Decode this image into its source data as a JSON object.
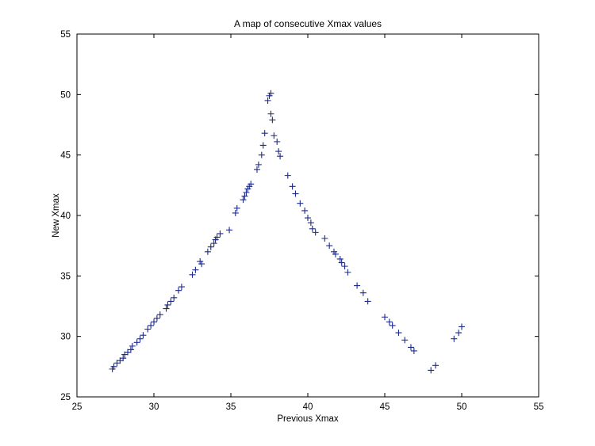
{
  "chart_data": {
    "type": "scatter",
    "title": "A map of consecutive Xmax values",
    "xlabel": "Previous Xmax",
    "ylabel": "New Xmax",
    "xlim": [
      25,
      55
    ],
    "ylim": [
      25,
      55
    ],
    "xticks": [
      25,
      30,
      35,
      40,
      45,
      50,
      55
    ],
    "yticks": [
      25,
      30,
      35,
      40,
      45,
      50,
      55
    ],
    "grid": false,
    "legend": "none",
    "marker": "+",
    "colors": {
      "marker": "#1c2a8c",
      "axes": "#000000",
      "background": "#ffffff"
    },
    "series": [
      {
        "x": [
          27.3,
          27.4,
          27.6,
          27.8,
          28.0,
          28.1,
          28.3,
          28.5,
          28.6,
          28.9,
          29.1,
          29.3,
          29.6,
          29.8,
          30.0,
          30.2,
          30.4,
          30.8,
          30.9,
          31.1,
          31.3,
          31.6,
          31.8,
          32.5,
          32.7,
          33.1,
          33.0,
          33.5,
          33.7,
          33.9,
          34.0,
          34.1,
          34.3,
          34.9,
          35.3,
          35.4,
          35.8,
          35.9,
          36.0,
          36.1,
          36.2,
          36.3,
          36.7,
          36.8,
          37.0,
          37.1,
          37.2,
          37.4,
          37.5,
          37.6,
          37.6,
          37.7,
          37.8,
          38.0,
          38.1,
          38.2,
          38.7,
          39.0,
          39.2,
          39.5,
          39.8,
          40.0,
          40.2,
          40.3,
          40.5,
          41.1,
          41.4,
          41.7,
          41.8,
          42.1,
          42.2,
          42.4,
          42.6,
          43.2,
          43.6,
          43.9,
          45.0,
          45.3,
          45.5,
          45.9,
          46.3,
          46.7,
          46.9,
          48.0,
          48.3,
          49.5,
          49.8,
          50.0
        ],
        "y": [
          27.3,
          27.5,
          27.8,
          28.0,
          28.2,
          28.5,
          28.7,
          28.9,
          29.2,
          29.5,
          29.8,
          30.1,
          30.6,
          30.9,
          31.2,
          31.5,
          31.8,
          32.3,
          32.6,
          32.9,
          33.2,
          33.8,
          34.1,
          35.1,
          35.5,
          36.0,
          36.2,
          37.0,
          37.4,
          37.7,
          38.0,
          38.2,
          38.5,
          38.8,
          40.2,
          40.6,
          41.3,
          41.6,
          41.9,
          42.2,
          42.4,
          42.6,
          43.8,
          44.2,
          45.0,
          45.8,
          46.8,
          49.5,
          49.9,
          50.1,
          48.4,
          47.9,
          46.6,
          46.1,
          45.3,
          44.9,
          43.3,
          42.4,
          41.8,
          41.0,
          40.4,
          39.8,
          39.4,
          38.9,
          38.6,
          38.1,
          37.5,
          37.0,
          36.8,
          36.4,
          36.1,
          35.8,
          35.3,
          34.2,
          33.6,
          32.9,
          31.6,
          31.2,
          30.9,
          30.3,
          29.7,
          29.1,
          28.8,
          27.2,
          27.6,
          29.8,
          30.3,
          30.8
        ]
      }
    ]
  }
}
